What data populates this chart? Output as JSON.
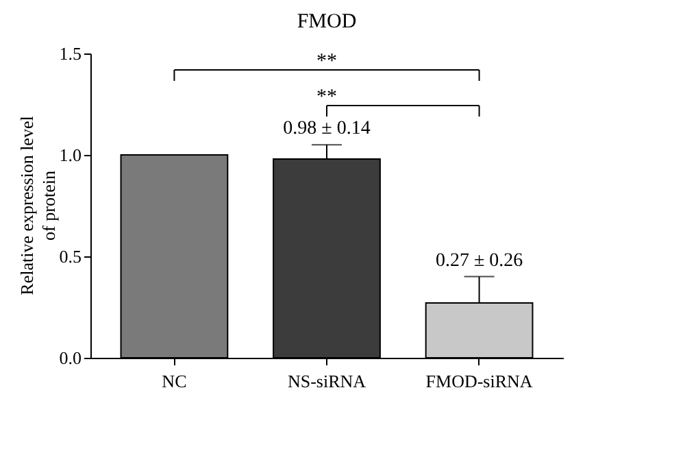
{
  "chart_data": {
    "type": "bar",
    "title": "FMOD",
    "ylabel": "Relative expression level of protein",
    "categories": [
      "NC",
      "NS-siRNA",
      "FMOD-siRNA"
    ],
    "values": [
      1.0,
      0.98,
      0.27
    ],
    "colors": [
      "#7a7a7a",
      "#3c3c3c",
      "#c8c8c8"
    ],
    "errors": [
      null,
      [
        0.98,
        1.05
      ],
      [
        0.27,
        0.4
      ]
    ],
    "value_labels": [
      null,
      "0.98 ± 0.14",
      "0.27 ± 0.26"
    ],
    "annotations": [
      "**",
      "**"
    ],
    "ylim": [
      0,
      1.5
    ],
    "yticks": [
      {
        "value": 0,
        "label": "0.0"
      },
      {
        "value": 0.5,
        "label": "0.5"
      },
      {
        "value": 1,
        "label": "1.0"
      },
      {
        "value": 1.5,
        "label": "1.5"
      }
    ],
    "grid": false
  }
}
